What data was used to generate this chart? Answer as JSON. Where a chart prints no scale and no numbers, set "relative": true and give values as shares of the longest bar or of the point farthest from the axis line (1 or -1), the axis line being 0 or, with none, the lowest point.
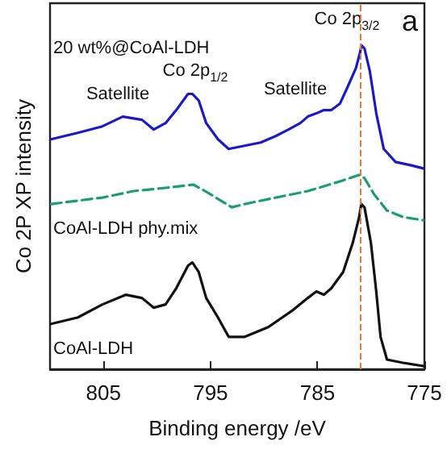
{
  "chart_data": {
    "type": "line",
    "relative": true,
    "xlabel": "Binding energy /eV",
    "ylabel": "Co 2P XP intensity",
    "xlim": [
      810,
      775
    ],
    "xticks": [
      805,
      795,
      785,
      775
    ],
    "grid": false,
    "legend": false,
    "marker": "none",
    "series": [
      {
        "name": "20 wt%@CoAl-LDH",
        "color": "#1a1acc",
        "line_style": "solid",
        "x": [
          809.9,
          807.4,
          805.1,
          803.2,
          801.4,
          800.3,
          799.2,
          798.2,
          797.1,
          796.7,
          796.1,
          795.4,
          794.3,
          793.3,
          791.8,
          790.3,
          788.9,
          787.7,
          786.6,
          785.9,
          785.1,
          784.4,
          783.7,
          782.9,
          782.2,
          781.4,
          781.0,
          780.9,
          780.6,
          780.1,
          779.5,
          778.8,
          777.7,
          776.3,
          775.1
        ],
        "values": [
          0.71,
          0.73,
          0.75,
          0.78,
          0.77,
          0.74,
          0.76,
          0.8,
          0.85,
          0.85,
          0.83,
          0.76,
          0.71,
          0.68,
          0.69,
          0.7,
          0.72,
          0.74,
          0.76,
          0.78,
          0.79,
          0.8,
          0.8,
          0.82,
          0.87,
          0.93,
          0.98,
          1,
          0.99,
          0.92,
          0.79,
          0.68,
          0.64,
          0.63,
          0.62
        ]
      },
      {
        "name": "CoAl-LDH phy.mix",
        "color": "#1a9e6e",
        "line_style": "dashed",
        "x": [
          809.9,
          805.1,
          802.2,
          799.2,
          796.6,
          795.5,
          794.0,
          793.0,
          791.8,
          788.9,
          785.9,
          782.9,
          781.1,
          780.6,
          779.7,
          778.5,
          777.0,
          775.1
        ],
        "values": [
          0.51,
          0.53,
          0.55,
          0.56,
          0.57,
          0.55,
          0.52,
          0.5,
          0.51,
          0.53,
          0.55,
          0.58,
          0.6,
          0.59,
          0.54,
          0.49,
          0.47,
          0.46
        ]
      },
      {
        "name": "CoAl-LDH",
        "color": "#111111",
        "line_style": "solid",
        "x": [
          809.9,
          807.4,
          805.1,
          802.9,
          801.4,
          800.3,
          799.2,
          798.2,
          797.1,
          796.7,
          796.1,
          795.4,
          794.3,
          793.3,
          791.8,
          789.6,
          787.4,
          785.9,
          785.1,
          784.4,
          783.7,
          782.6,
          781.7,
          781.1,
          780.9,
          780.6,
          780.0,
          779.5,
          779.1,
          778.5,
          777.0,
          775.1
        ],
        "values": [
          0.14,
          0.16,
          0.2,
          0.23,
          0.22,
          0.19,
          0.2,
          0.25,
          0.32,
          0.33,
          0.3,
          0.22,
          0.16,
          0.1,
          0.1,
          0.13,
          0.18,
          0.22,
          0.24,
          0.23,
          0.25,
          0.3,
          0.39,
          0.47,
          0.51,
          0.5,
          0.39,
          0.24,
          0.1,
          0.03,
          0.02,
          0.01
        ]
      }
    ],
    "ref_lines": [
      {
        "axis": "x",
        "value": 781,
        "color": "#e07b39",
        "line_style": "dashed"
      }
    ],
    "annotations": [
      "Satellite",
      "Co 2p$_{1/2}$",
      "Satellite",
      "Co 2p$_{3/2}$",
      "a"
    ]
  }
}
